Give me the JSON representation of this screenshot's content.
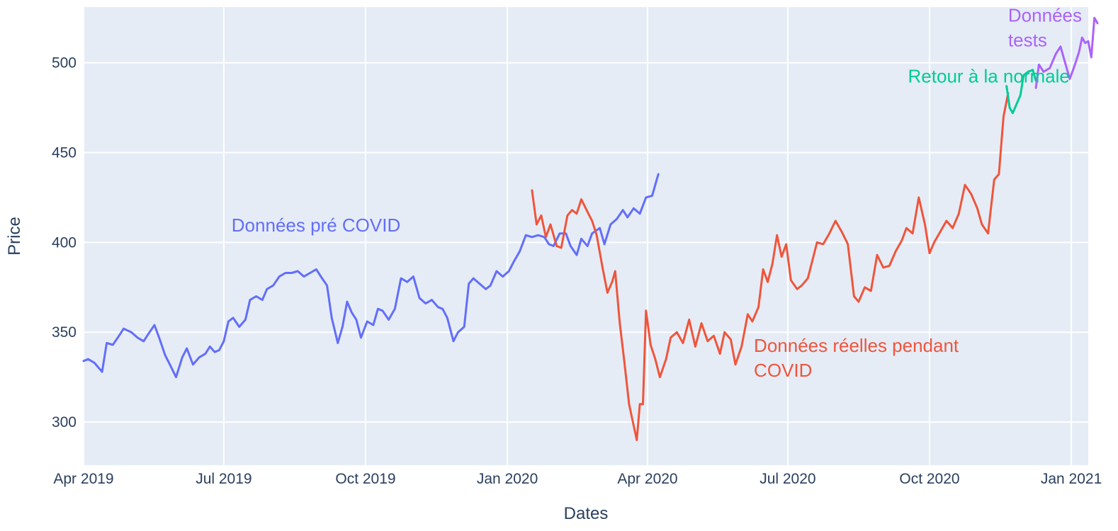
{
  "chart_data": {
    "type": "line",
    "title": "",
    "xlabel": "Dates",
    "ylabel": "Price",
    "xlim": [
      "2019-04-01",
      "2021-01-12"
    ],
    "ylim": [
      276,
      531
    ],
    "grid": true,
    "legend": "none",
    "plot_background": "#e5ecf6",
    "x_ticks": [
      {
        "date": "2019-04-01",
        "label": "Apr 2019"
      },
      {
        "date": "2019-07-01",
        "label": "Jul 2019"
      },
      {
        "date": "2019-10-01",
        "label": "Oct 2019"
      },
      {
        "date": "2020-01-01",
        "label": "Jan 2020"
      },
      {
        "date": "2020-04-01",
        "label": "Apr 2020"
      },
      {
        "date": "2020-07-01",
        "label": "Jul 2020"
      },
      {
        "date": "2020-10-01",
        "label": "Oct 2020"
      },
      {
        "date": "2021-01-01",
        "label": "Jan 2021"
      }
    ],
    "y_ticks": [
      {
        "value": 300,
        "label": "300"
      },
      {
        "value": 350,
        "label": "350"
      },
      {
        "value": 400,
        "label": "400"
      },
      {
        "value": 450,
        "label": "450"
      },
      {
        "value": 500,
        "label": "500"
      }
    ],
    "series": [
      {
        "name": "Données pré COVID",
        "color": "#636efa",
        "points": [
          [
            "2019-04-01",
            334
          ],
          [
            "2019-04-04",
            335
          ],
          [
            "2019-04-08",
            333
          ],
          [
            "2019-04-11",
            330
          ],
          [
            "2019-04-13",
            328
          ],
          [
            "2019-04-16",
            344
          ],
          [
            "2019-04-20",
            343
          ],
          [
            "2019-04-24",
            348
          ],
          [
            "2019-04-27",
            352
          ],
          [
            "2019-05-02",
            350
          ],
          [
            "2019-05-06",
            347
          ],
          [
            "2019-05-10",
            345
          ],
          [
            "2019-05-13",
            349
          ],
          [
            "2019-05-17",
            354
          ],
          [
            "2019-05-20",
            347
          ],
          [
            "2019-05-24",
            337
          ],
          [
            "2019-05-27",
            332
          ],
          [
            "2019-05-31",
            325
          ],
          [
            "2019-06-04",
            336
          ],
          [
            "2019-06-07",
            341
          ],
          [
            "2019-06-11",
            332
          ],
          [
            "2019-06-15",
            336
          ],
          [
            "2019-06-19",
            338
          ],
          [
            "2019-06-22",
            342
          ],
          [
            "2019-06-25",
            339
          ],
          [
            "2019-06-28",
            340
          ],
          [
            "2019-07-01",
            345
          ],
          [
            "2019-07-04",
            356
          ],
          [
            "2019-07-07",
            358
          ],
          [
            "2019-07-11",
            353
          ],
          [
            "2019-07-15",
            357
          ],
          [
            "2019-07-18",
            368
          ],
          [
            "2019-07-22",
            370
          ],
          [
            "2019-07-26",
            368
          ],
          [
            "2019-07-29",
            374
          ],
          [
            "2019-08-02",
            376
          ],
          [
            "2019-08-06",
            381
          ],
          [
            "2019-08-10",
            383
          ],
          [
            "2019-08-14",
            383
          ],
          [
            "2019-08-18",
            384
          ],
          [
            "2019-08-22",
            381
          ],
          [
            "2019-08-26",
            383
          ],
          [
            "2019-08-30",
            385
          ],
          [
            "2019-09-02",
            381
          ],
          [
            "2019-09-06",
            376
          ],
          [
            "2019-09-09",
            358
          ],
          [
            "2019-09-13",
            344
          ],
          [
            "2019-09-16",
            353
          ],
          [
            "2019-09-19",
            367
          ],
          [
            "2019-09-22",
            361
          ],
          [
            "2019-09-25",
            357
          ],
          [
            "2019-09-28",
            347
          ],
          [
            "2019-10-02",
            356
          ],
          [
            "2019-10-06",
            354
          ],
          [
            "2019-10-09",
            363
          ],
          [
            "2019-10-12",
            362
          ],
          [
            "2019-10-16",
            357
          ],
          [
            "2019-10-20",
            363
          ],
          [
            "2019-10-24",
            380
          ],
          [
            "2019-10-28",
            378
          ],
          [
            "2019-11-01",
            381
          ],
          [
            "2019-11-05",
            369
          ],
          [
            "2019-11-09",
            366
          ],
          [
            "2019-11-13",
            368
          ],
          [
            "2019-11-17",
            364
          ],
          [
            "2019-11-20",
            363
          ],
          [
            "2019-11-23",
            358
          ],
          [
            "2019-11-27",
            345
          ],
          [
            "2019-11-30",
            350
          ],
          [
            "2019-12-04",
            353
          ],
          [
            "2019-12-07",
            377
          ],
          [
            "2019-12-10",
            380
          ],
          [
            "2019-12-14",
            377
          ],
          [
            "2019-12-18",
            374
          ],
          [
            "2019-12-21",
            376
          ],
          [
            "2019-12-25",
            384
          ],
          [
            "2019-12-29",
            381
          ],
          [
            "2020-01-02",
            384
          ],
          [
            "2020-01-05",
            389
          ],
          [
            "2020-01-09",
            395
          ],
          [
            "2020-01-13",
            404
          ],
          [
            "2020-01-17",
            403
          ],
          [
            "2020-01-21",
            404
          ],
          [
            "2020-01-25",
            403
          ],
          [
            "2020-01-28",
            399
          ],
          [
            "2020-01-31",
            398
          ],
          [
            "2020-02-04",
            405
          ],
          [
            "2020-02-08",
            405
          ],
          [
            "2020-02-11",
            398
          ],
          [
            "2020-02-15",
            393
          ],
          [
            "2020-02-18",
            402
          ],
          [
            "2020-02-22",
            398
          ],
          [
            "2020-02-25",
            405
          ],
          [
            "2020-03-01",
            408
          ],
          [
            "2020-03-04",
            399
          ],
          [
            "2020-03-08",
            410
          ],
          [
            "2020-03-12",
            413
          ],
          [
            "2020-03-16",
            418
          ],
          [
            "2020-03-19",
            414
          ],
          [
            "2020-03-23",
            419
          ],
          [
            "2020-03-27",
            416
          ],
          [
            "2020-03-31",
            425
          ],
          [
            "2020-04-04",
            426
          ],
          [
            "2020-04-08",
            438
          ]
        ]
      },
      {
        "name": "Données réelles pendant COVID",
        "color": "#ef553b",
        "points": [
          [
            "2020-01-17",
            429
          ],
          [
            "2020-01-20",
            410
          ],
          [
            "2020-01-23",
            415
          ],
          [
            "2020-01-26",
            403
          ],
          [
            "2020-01-29",
            410
          ],
          [
            "2020-02-02",
            398
          ],
          [
            "2020-02-05",
            397
          ],
          [
            "2020-02-09",
            415
          ],
          [
            "2020-02-12",
            418
          ],
          [
            "2020-02-15",
            416
          ],
          [
            "2020-02-18",
            424
          ],
          [
            "2020-02-22",
            417
          ],
          [
            "2020-02-25",
            412
          ],
          [
            "2020-02-28",
            404
          ],
          [
            "2020-03-03",
            385
          ],
          [
            "2020-03-06",
            372
          ],
          [
            "2020-03-09",
            378
          ],
          [
            "2020-03-11",
            384
          ],
          [
            "2020-03-14",
            355
          ],
          [
            "2020-03-17",
            333
          ],
          [
            "2020-03-20",
            310
          ],
          [
            "2020-03-22",
            302
          ],
          [
            "2020-03-25",
            290
          ],
          [
            "2020-03-27",
            310
          ],
          [
            "2020-03-29",
            310
          ],
          [
            "2020-03-31",
            362
          ],
          [
            "2020-04-03",
            343
          ],
          [
            "2020-04-06",
            335
          ],
          [
            "2020-04-09",
            325
          ],
          [
            "2020-04-13",
            335
          ],
          [
            "2020-04-16",
            347
          ],
          [
            "2020-04-20",
            350
          ],
          [
            "2020-04-24",
            344
          ],
          [
            "2020-04-28",
            357
          ],
          [
            "2020-05-02",
            342
          ],
          [
            "2020-05-06",
            355
          ],
          [
            "2020-05-10",
            345
          ],
          [
            "2020-05-14",
            348
          ],
          [
            "2020-05-18",
            338
          ],
          [
            "2020-05-21",
            350
          ],
          [
            "2020-05-25",
            346
          ],
          [
            "2020-05-28",
            332
          ],
          [
            "2020-06-01",
            342
          ],
          [
            "2020-06-05",
            360
          ],
          [
            "2020-06-08",
            356
          ],
          [
            "2020-06-12",
            364
          ],
          [
            "2020-06-15",
            385
          ],
          [
            "2020-06-18",
            378
          ],
          [
            "2020-06-21",
            388
          ],
          [
            "2020-06-24",
            404
          ],
          [
            "2020-06-27",
            392
          ],
          [
            "2020-06-30",
            399
          ],
          [
            "2020-07-03",
            379
          ],
          [
            "2020-07-07",
            374
          ],
          [
            "2020-07-10",
            376
          ],
          [
            "2020-07-14",
            380
          ],
          [
            "2020-07-17",
            390
          ],
          [
            "2020-07-20",
            400
          ],
          [
            "2020-07-24",
            399
          ],
          [
            "2020-07-28",
            405
          ],
          [
            "2020-08-01",
            412
          ],
          [
            "2020-08-05",
            406
          ],
          [
            "2020-08-09",
            399
          ],
          [
            "2020-08-13",
            370
          ],
          [
            "2020-08-16",
            367
          ],
          [
            "2020-08-20",
            375
          ],
          [
            "2020-08-24",
            373
          ],
          [
            "2020-08-28",
            393
          ],
          [
            "2020-09-01",
            386
          ],
          [
            "2020-09-05",
            387
          ],
          [
            "2020-09-09",
            395
          ],
          [
            "2020-09-13",
            401
          ],
          [
            "2020-09-16",
            408
          ],
          [
            "2020-09-20",
            405
          ],
          [
            "2020-09-24",
            425
          ],
          [
            "2020-09-28",
            410
          ],
          [
            "2020-10-01",
            394
          ],
          [
            "2020-10-04",
            400
          ],
          [
            "2020-10-08",
            406
          ],
          [
            "2020-10-12",
            412
          ],
          [
            "2020-10-16",
            408
          ],
          [
            "2020-10-20",
            416
          ],
          [
            "2020-10-24",
            432
          ],
          [
            "2020-10-28",
            427
          ],
          [
            "2020-11-01",
            419
          ],
          [
            "2020-11-04",
            410
          ],
          [
            "2020-11-08",
            405
          ],
          [
            "2020-11-12",
            435
          ],
          [
            "2020-11-15",
            438
          ],
          [
            "2020-11-18",
            470
          ],
          [
            "2020-11-21",
            483
          ]
        ]
      },
      {
        "name": "Retour à la normale",
        "color": "#00cc96",
        "points": [
          [
            "2020-11-20",
            487
          ],
          [
            "2020-11-22",
            475
          ],
          [
            "2020-11-24",
            472
          ],
          [
            "2020-11-26",
            476
          ],
          [
            "2020-11-29",
            482
          ],
          [
            "2020-12-01",
            493
          ],
          [
            "2020-12-04",
            495
          ],
          [
            "2020-12-07",
            496
          ],
          [
            "2020-12-09",
            490
          ]
        ]
      },
      {
        "name": "Données tests",
        "color": "#ab63fa",
        "points": [
          [
            "2020-12-09",
            486
          ],
          [
            "2020-12-11",
            499
          ],
          [
            "2020-12-14",
            495
          ],
          [
            "2020-12-18",
            497
          ],
          [
            "2020-12-22",
            505
          ],
          [
            "2020-12-25",
            509
          ],
          [
            "2020-12-28",
            500
          ],
          [
            "2020-12-31",
            491
          ],
          [
            "2021-01-03",
            498
          ],
          [
            "2021-01-06",
            506
          ],
          [
            "2021-01-08",
            514
          ],
          [
            "2021-01-10",
            511
          ],
          [
            "2021-01-12",
            512
          ],
          [
            "2021-01-14",
            503
          ],
          [
            "2021-01-16",
            525
          ],
          [
            "2021-01-18",
            522
          ]
        ]
      }
    ],
    "annotations": [
      {
        "text": "Données pré COVID",
        "color": "#636efa",
        "anchor": {
          "date": "2019-07-06",
          "value": 406
        }
      },
      {
        "text": "Données réelles pendant COVID",
        "color": "#ef553b",
        "anchor": {
          "date": "2020-06-09",
          "value": 339
        },
        "lines": [
          "Données réelles pendant",
          "COVID"
        ]
      },
      {
        "text": "Retour à la normale",
        "color": "#00cc96",
        "anchor": {
          "date": "2020-09-17",
          "value": 489
        }
      },
      {
        "text": "Données tests",
        "color": "#ab63fa",
        "anchor": {
          "date": "2020-11-21",
          "value": 523
        },
        "lines": [
          "Données",
          "tests"
        ]
      }
    ]
  }
}
